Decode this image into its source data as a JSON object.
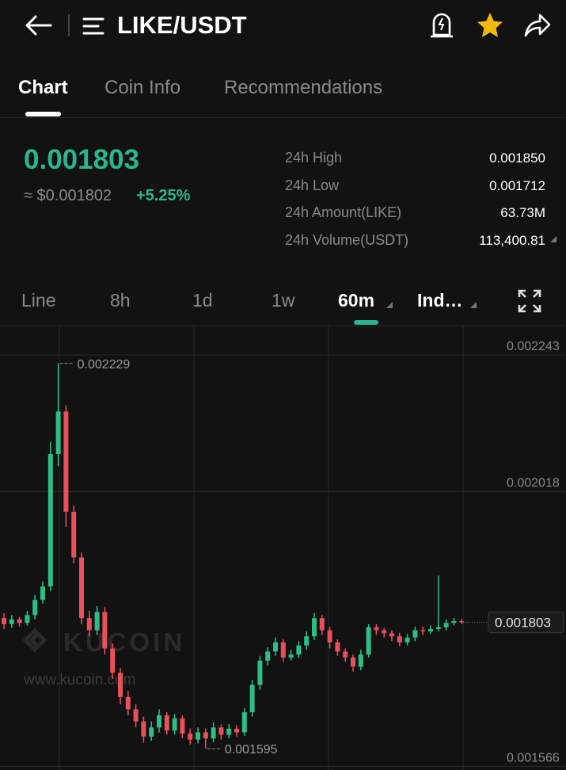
{
  "header": {
    "title": "LIKE/USDT"
  },
  "tabs": [
    "Chart",
    "Coin Info",
    "Recommendations"
  ],
  "price": {
    "last": "0.001803",
    "fiat": "≈ $0.001802",
    "change": "+5.25%"
  },
  "stats": [
    {
      "label": "24h High",
      "value": "0.001850"
    },
    {
      "label": "24h Low",
      "value": "0.001712"
    },
    {
      "label": "24h Amount(LIKE)",
      "value": "63.73M"
    },
    {
      "label": "24h Volume(USDT)",
      "value": "113,400.81"
    }
  ],
  "intervals": [
    "Line",
    "8h",
    "1d",
    "1w",
    "60m",
    "Ind…"
  ],
  "watermark": {
    "brand": "KUCOIN",
    "url": "www.kucoin.com"
  },
  "chart_data": {
    "type": "candlestick",
    "open": [
      0.00181,
      0.0018,
      0.001808,
      0.001802,
      0.001815,
      0.00184,
      0.001862,
      0.00208,
      0.00215,
      0.001985,
      0.00191,
      0.00181,
      0.00179,
      0.00182,
      0.00176,
      0.00172,
      0.00168,
      0.00166,
      0.00164,
      0.001615,
      0.00163,
      0.00165,
      0.001625,
      0.001645,
      0.00162,
      0.00161,
      0.001622,
      0.001612,
      0.00163,
      0.001618,
      0.001628,
      0.001622,
      0.001655,
      0.0017,
      0.00174,
      0.001755,
      0.00177,
      0.001745,
      0.00175,
      0.001765,
      0.00178,
      0.00181,
      0.00179,
      0.00177,
      0.001755,
      0.001745,
      0.00173,
      0.00175,
      0.001795,
      0.00179,
      0.001785,
      0.00178,
      0.00177,
      0.001778,
      0.00179,
      0.001788,
      0.001792,
      0.001795,
      0.001802,
      0.001805
    ],
    "high": [
      0.001818,
      0.001815,
      0.001812,
      0.001822,
      0.001848,
      0.00187,
      0.0021,
      0.002229,
      0.00216,
      0.001995,
      0.001918,
      0.001822,
      0.00183,
      0.001828,
      0.001768,
      0.001728,
      0.00169,
      0.001668,
      0.001648,
      0.00164,
      0.00166,
      0.001655,
      0.001652,
      0.00165,
      0.001628,
      0.00163,
      0.001628,
      0.001638,
      0.001635,
      0.001636,
      0.001634,
      0.001662,
      0.001708,
      0.001748,
      0.001762,
      0.001778,
      0.001775,
      0.001758,
      0.001772,
      0.001788,
      0.001818,
      0.001815,
      0.001796,
      0.001775,
      0.00176,
      0.00175,
      0.001758,
      0.0018,
      0.0018,
      0.001794,
      0.00179,
      0.001786,
      0.001784,
      0.001796,
      0.001796,
      0.001798,
      0.00188,
      0.001808,
      0.00181,
      0.001808
    ],
    "low": [
      0.001792,
      0.001794,
      0.001796,
      0.001798,
      0.001808,
      0.001834,
      0.001855,
      0.00206,
      0.00196,
      0.0019,
      0.0018,
      0.00178,
      0.001782,
      0.00175,
      0.00171,
      0.001668,
      0.00165,
      0.00163,
      0.001605,
      0.001608,
      0.001622,
      0.001618,
      0.001618,
      0.001612,
      0.001602,
      0.001604,
      0.001595,
      0.001606,
      0.00161,
      0.001612,
      0.001615,
      0.001616,
      0.001648,
      0.001692,
      0.001732,
      0.001748,
      0.001738,
      0.00174,
      0.001744,
      0.001758,
      0.001774,
      0.001782,
      0.00176,
      0.001748,
      0.001738,
      0.001722,
      0.001724,
      0.001745,
      0.001782,
      0.001778,
      0.001772,
      0.001764,
      0.001765,
      0.001772,
      0.001782,
      0.001784,
      0.001788,
      0.00179,
      0.001798,
      0.0018
    ],
    "close": [
      0.0018,
      0.001808,
      0.001802,
      0.001815,
      0.00184,
      0.001862,
      0.00208,
      0.00215,
      0.001985,
      0.00191,
      0.00181,
      0.00179,
      0.00182,
      0.00176,
      0.00172,
      0.00168,
      0.00166,
      0.00164,
      0.001615,
      0.00163,
      0.00165,
      0.001625,
      0.001645,
      0.00162,
      0.00161,
      0.001622,
      0.001612,
      0.00163,
      0.001618,
      0.001628,
      0.001622,
      0.001655,
      0.0017,
      0.00174,
      0.001755,
      0.00177,
      0.001745,
      0.00175,
      0.001765,
      0.00178,
      0.00181,
      0.00179,
      0.00177,
      0.001755,
      0.001745,
      0.00173,
      0.00175,
      0.001795,
      0.00179,
      0.001785,
      0.00178,
      0.00177,
      0.001778,
      0.00179,
      0.001788,
      0.001792,
      0.001795,
      0.001802,
      0.001805,
      0.001803
    ],
    "ylim": [
      0.00156,
      0.00229
    ],
    "yticks": [
      0.002243,
      0.002018,
      0.001566
    ],
    "grid": true,
    "up_color": "#2ebd85",
    "down_color": "#e8505b"
  }
}
